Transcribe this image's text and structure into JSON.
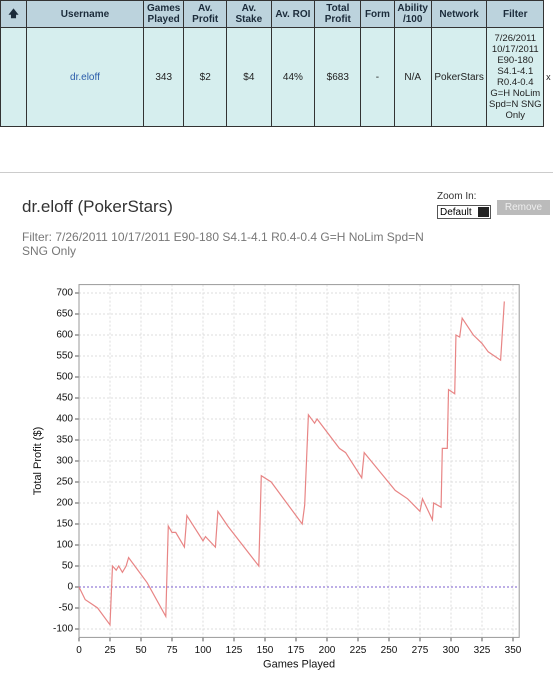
{
  "table": {
    "headers": [
      "Username",
      "Games Played",
      "Av. Profit",
      "Av. Stake",
      "Av. ROI",
      "Total Profit",
      "Form",
      "Ability /100",
      "Network",
      "Filter"
    ],
    "rows": [
      [
        "dr.eloff",
        "343",
        "$2",
        "$4",
        "44%",
        "$683",
        "-",
        "N/A",
        "PokerStars",
        "7/26/2011 10/17/2011 E90-180 S4.1-4.1 R0.4-0.4 G=H NoLim Spd=N SNG Only"
      ]
    ],
    "delete": "x"
  },
  "panel": {
    "title": "dr.eloff (PokerStars)",
    "filter": "Filter: 7/26/2011 10/17/2011 E90-180 S4.1-4.1 R0.4-0.4 G=H NoLim Spd=N SNG Only",
    "zoom_label": "Zoom In:",
    "zoom_value": "Default",
    "remove": "Remove"
  },
  "chart_data": {
    "type": "line",
    "xlabel": "Games Played",
    "ylabel": "Total Profit ($)",
    "x": [
      0,
      5,
      10,
      15,
      25,
      27,
      30,
      32,
      35,
      38,
      40,
      45,
      55,
      70,
      72,
      75,
      78,
      85,
      87,
      100,
      102,
      110,
      112,
      120,
      145,
      147,
      155,
      180,
      182,
      185,
      190,
      192,
      210,
      215,
      228,
      230,
      255,
      265,
      275,
      277,
      285,
      286,
      292,
      293,
      297,
      298,
      303,
      304,
      307,
      309,
      318,
      325,
      330,
      340,
      343
    ],
    "series": [
      {
        "name": "Total Profit",
        "color": "#e88585",
        "values": [
          0,
          -30,
          -40,
          -50,
          -90,
          50,
          40,
          50,
          35,
          50,
          70,
          50,
          10,
          -70,
          145,
          130,
          130,
          95,
          170,
          110,
          120,
          95,
          180,
          145,
          50,
          265,
          250,
          150,
          195,
          410,
          390,
          400,
          330,
          320,
          260,
          320,
          230,
          210,
          180,
          210,
          160,
          200,
          190,
          330,
          330,
          470,
          460,
          600,
          595,
          640,
          600,
          580,
          560,
          540,
          680
        ]
      }
    ],
    "xlim": [
      0,
      355
    ],
    "ylim": [
      -120,
      720
    ],
    "xticks": [
      0,
      25,
      50,
      75,
      100,
      125,
      150,
      175,
      200,
      225,
      250,
      275,
      300,
      325,
      350
    ],
    "yticks": [
      -100,
      -50,
      0,
      50,
      100,
      150,
      200,
      250,
      300,
      350,
      400,
      450,
      500,
      550,
      600,
      650,
      700
    ],
    "grid": true
  }
}
